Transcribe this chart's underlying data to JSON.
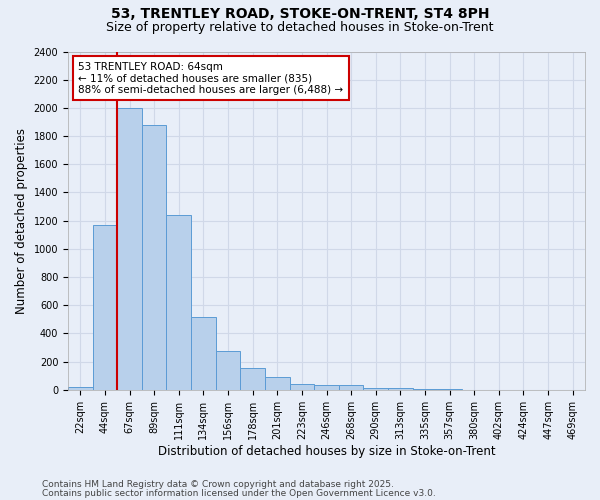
{
  "title1": "53, TRENTLEY ROAD, STOKE-ON-TRENT, ST4 8PH",
  "title2": "Size of property relative to detached houses in Stoke-on-Trent",
  "xlabel": "Distribution of detached houses by size in Stoke-on-Trent",
  "ylabel": "Number of detached properties",
  "categories": [
    "22sqm",
    "44sqm",
    "67sqm",
    "89sqm",
    "111sqm",
    "134sqm",
    "156sqm",
    "178sqm",
    "201sqm",
    "223sqm",
    "246sqm",
    "268sqm",
    "290sqm",
    "313sqm",
    "335sqm",
    "357sqm",
    "380sqm",
    "402sqm",
    "424sqm",
    "447sqm",
    "469sqm"
  ],
  "values": [
    20,
    1170,
    2000,
    1880,
    1240,
    520,
    275,
    155,
    90,
    45,
    35,
    32,
    15,
    10,
    5,
    3,
    2,
    2,
    1,
    1,
    1
  ],
  "bar_color": "#b8d0eb",
  "bar_edge_color": "#5b9bd5",
  "background_color": "#e8eef8",
  "grid_color": "#d0d8e8",
  "annotation_box_edge_color": "#cc0000",
  "annotation_line1": "53 TRENTLEY ROAD: 64sqm",
  "annotation_line2": "← 11% of detached houses are smaller (835)",
  "annotation_line3": "88% of semi-detached houses are larger (6,488) →",
  "vline_color": "#cc0000",
  "vline_x": 1.5,
  "ylim": [
    0,
    2400
  ],
  "yticks": [
    0,
    200,
    400,
    600,
    800,
    1000,
    1200,
    1400,
    1600,
    1800,
    2000,
    2200,
    2400
  ],
  "footer1": "Contains HM Land Registry data © Crown copyright and database right 2025.",
  "footer2": "Contains public sector information licensed under the Open Government Licence v3.0.",
  "title_fontsize": 10,
  "subtitle_fontsize": 9,
  "annotation_fontsize": 7.5,
  "axis_label_fontsize": 8.5,
  "tick_fontsize": 7,
  "footer_fontsize": 6.5
}
